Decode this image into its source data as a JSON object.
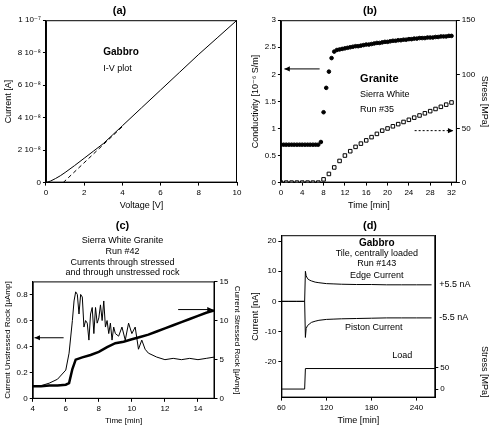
{
  "chart_data": [
    {
      "type": "line",
      "title": "(a)",
      "annotations": [
        "Gabbro",
        "I-V plot"
      ],
      "x_label": "Voltage [V]",
      "y_label": "Current [A]",
      "xlim": [
        0,
        10
      ],
      "xticks": [
        0,
        2,
        4,
        6,
        8,
        10
      ],
      "ylim": [
        0,
        1e-07
      ],
      "yticks": [
        0,
        {
          "value": 2e-08,
          "label": "2 10⁻⁸"
        },
        {
          "value": 4e-08,
          "label": "4 10⁻⁸"
        },
        {
          "value": 6e-08,
          "label": "6 10⁻⁸"
        },
        {
          "value": 8e-08,
          "label": "8 10⁻⁸"
        },
        {
          "value": 1e-07,
          "label": "1 10⁻⁷"
        }
      ],
      "grid": false,
      "series": [
        {
          "color": "#000000",
          "line_style": "solid",
          "x": [
            0,
            0.25,
            0.5,
            0.75,
            1,
            1.5,
            2,
            2.5,
            3,
            3.5,
            4,
            5,
            6,
            7,
            8,
            9,
            10
          ],
          "values": [
            0,
            1e-09,
            2.5e-09,
            4.2e-09,
            6.2e-09,
            1.05e-08,
            1.5e-08,
            1.95e-08,
            2.4e-08,
            2.95e-08,
            3.5e-08,
            4.6e-08,
            5.7e-08,
            6.8e-08,
            7.9e-08,
            8.95e-08,
            1e-07
          ]
        },
        {
          "color": "#000000",
          "line_style": "dashed",
          "x": [
            0.9,
            4
          ],
          "values": [
            0,
            3.45e-08
          ]
        }
      ]
    },
    {
      "type": "scatter",
      "title": "(b)",
      "annotations": [
        "Granite",
        "Sierra White",
        "Run #35"
      ],
      "x_label": "Time [min]",
      "y_label": "Conductivity [10⁻⁶ S/m]",
      "y2_label": "Stress [MPa]",
      "xlim": [
        0,
        33
      ],
      "xticks": [
        0,
        4,
        8,
        12,
        16,
        20,
        24,
        28,
        32
      ],
      "ylim": [
        0,
        3
      ],
      "yticks": [
        0,
        0.5,
        1,
        1.5,
        2,
        2.5,
        3
      ],
      "y2lim": [
        0,
        150
      ],
      "y2ticks": [
        0,
        50,
        100,
        150
      ],
      "grid": false,
      "series": [
        {
          "color": "#000000",
          "marker": "circle",
          "x": [
            0,
            0.5,
            1,
            1.5,
            2,
            2.5,
            3,
            3.5,
            4,
            4.5,
            5,
            5.5,
            6,
            6.5,
            7,
            7.5,
            8,
            8.5,
            9,
            9.5,
            10,
            10.5,
            11,
            11.5,
            12,
            12.5,
            13,
            13.5,
            14,
            14.5,
            15,
            15.5,
            16,
            16.5,
            17,
            17.5,
            18,
            18.5,
            19,
            19.5,
            20,
            20.5,
            21,
            21.5,
            22,
            22.5,
            23,
            23.5,
            24,
            24.5,
            25,
            25.5,
            26,
            26.5,
            27,
            27.5,
            28,
            28.5,
            29,
            29.5,
            30,
            30.5,
            31,
            31.5,
            32
          ],
          "values": [
            0.7,
            0.7,
            0.7,
            0.7,
            0.7,
            0.7,
            0.7,
            0.7,
            0.7,
            0.7,
            0.7,
            0.7,
            0.7,
            0.7,
            0.7,
            0.75,
            1.3,
            1.75,
            2.05,
            2.3,
            2.42,
            2.45,
            2.46,
            2.47,
            2.48,
            2.49,
            2.5,
            2.51,
            2.52,
            2.52,
            2.53,
            2.54,
            2.55,
            2.55,
            2.56,
            2.57,
            2.58,
            2.58,
            2.59,
            2.6,
            2.6,
            2.61,
            2.62,
            2.62,
            2.63,
            2.63,
            2.64,
            2.64,
            2.65,
            2.65,
            2.66,
            2.66,
            2.67,
            2.67,
            2.67,
            2.68,
            2.68,
            2.68,
            2.69,
            2.69,
            2.7,
            2.7,
            2.7,
            2.71,
            2.71
          ]
        },
        {
          "color": "#000000",
          "marker": "open_square",
          "axis": "y2",
          "x": [
            0,
            1,
            2,
            3,
            4,
            5,
            6,
            7,
            8,
            9,
            10,
            11,
            12,
            13,
            14,
            15,
            16,
            17,
            18,
            19,
            20,
            21,
            22,
            23,
            24,
            25,
            26,
            27,
            28,
            29,
            30,
            31,
            32
          ],
          "values": [
            0,
            0,
            0,
            0,
            0,
            0,
            0,
            0,
            3,
            8,
            14,
            20,
            25,
            29,
            33,
            36,
            39,
            42,
            45,
            48,
            50,
            52,
            54,
            56,
            58,
            60,
            62,
            64,
            66,
            68,
            70,
            72,
            74
          ]
        }
      ]
    },
    {
      "type": "line",
      "title": "(c)",
      "subtitle": [
        "Sierra White Granite",
        "Run #42",
        "Currents through stressed",
        "and through unstressed rock"
      ],
      "x_label": "Time [min]",
      "y_label": "Current Unstressed Rock [μAmp]",
      "y2_label": "Current Stressed Rock [μAmp]",
      "xlim": [
        4,
        15
      ],
      "xticks": [
        4,
        6,
        8,
        10,
        12,
        14
      ],
      "ylim": [
        0,
        0.9
      ],
      "yticks": [
        0,
        0.2,
        0.4,
        0.6,
        0.8
      ],
      "y2lim": [
        0,
        15
      ],
      "y2ticks": [
        0,
        5,
        10,
        15
      ],
      "grid": false,
      "series": [
        {
          "color": "#000000",
          "line_style": "solid",
          "x": [
            4,
            4.5,
            5,
            5.5,
            6,
            6.2,
            6.4,
            6.5,
            6.6,
            6.7,
            6.8,
            6.9,
            7.0,
            7.1,
            7.2,
            7.3,
            7.4,
            7.5,
            7.6,
            7.7,
            7.8,
            7.9,
            8.0,
            8.1,
            8.2,
            8.3,
            8.4,
            8.5,
            8.6,
            8.7,
            8.8,
            8.9,
            9.0,
            9.2,
            9.4,
            9.6,
            9.8,
            10.0,
            10.2,
            10.4,
            10.6,
            10.8,
            11.0,
            11.5,
            12,
            12.5,
            13,
            13.5,
            14,
            14.5,
            15
          ],
          "values": [
            0.1,
            0.1,
            0.12,
            0.15,
            0.22,
            0.35,
            0.6,
            0.75,
            0.82,
            0.8,
            0.65,
            0.8,
            0.78,
            0.55,
            0.6,
            0.58,
            0.45,
            0.65,
            0.7,
            0.5,
            0.7,
            0.58,
            0.62,
            0.72,
            0.6,
            0.75,
            0.55,
            0.6,
            0.5,
            0.58,
            0.45,
            0.55,
            0.5,
            0.48,
            0.55,
            0.45,
            0.58,
            0.5,
            0.55,
            0.38,
            0.45,
            0.38,
            0.35,
            0.32,
            0.3,
            0.31,
            0.3,
            0.31,
            0.3,
            0.31,
            0.32
          ]
        },
        {
          "color": "#000000",
          "line_style": "bold",
          "axis": "y2",
          "x": [
            4,
            4.5,
            5,
            5.5,
            6,
            6.2,
            6.4,
            6.6,
            7,
            7.5,
            8,
            8.5,
            9,
            9.5,
            10,
            10.5,
            11,
            11.5,
            12,
            12.5,
            13,
            13.5,
            14,
            14.5,
            15
          ],
          "values": [
            1.6,
            1.6,
            1.7,
            1.7,
            1.8,
            2.0,
            3.8,
            5.0,
            5.3,
            5.6,
            6.0,
            6.6,
            7.1,
            7.3,
            7.6,
            7.9,
            8.2,
            8.6,
            9.0,
            9.4,
            9.8,
            10.2,
            10.6,
            11.0,
            11.3
          ]
        }
      ]
    },
    {
      "type": "line",
      "title": "(d)",
      "annotations": [
        "Gabbro",
        "Tile, centrally loaded",
        "Run #143",
        "Edge Current",
        "Piston Current",
        "Load",
        "+5.5 nA",
        "-5.5 nA"
      ],
      "x_label": "Time [min]",
      "y_label": "Current [nA]",
      "y2_label": "Stress [MPa]",
      "xlim": [
        60,
        265
      ],
      "xticks": [
        60,
        120,
        180,
        240
      ],
      "ylim": [
        -32,
        22
      ],
      "yticks": [
        -20,
        -10,
        0,
        10,
        20
      ],
      "y2lim": [
        -20,
        360
      ],
      "y2ticks": [
        0,
        50
      ],
      "grid": false,
      "series": [
        {
          "color": "#000000",
          "line_style": "solid",
          "x": [
            60,
            70,
            80,
            90,
            91,
            92,
            93,
            95,
            98,
            100,
            105,
            110,
            120,
            130,
            140,
            160,
            180,
            200,
            220,
            240,
            260
          ],
          "values": [
            0,
            0,
            0,
            0,
            0,
            10,
            8.5,
            7.5,
            7,
            6.8,
            6.4,
            6.2,
            5.9,
            5.8,
            5.7,
            5.6,
            5.6,
            5.5,
            5.5,
            5.5,
            5.5
          ]
        },
        {
          "color": "#000000",
          "line_style": "solid",
          "x": [
            60,
            70,
            80,
            90,
            91,
            92,
            93,
            95,
            98,
            100,
            105,
            110,
            120,
            130,
            140,
            160,
            180,
            200,
            220,
            240,
            260
          ],
          "values": [
            0,
            0,
            0,
            0,
            0,
            -12,
            -9,
            -8,
            -7.4,
            -7,
            -6.6,
            -6.3,
            -6,
            -5.9,
            -5.8,
            -5.7,
            -5.6,
            -5.5,
            -5.5,
            -5.5,
            -5.5
          ]
        },
        {
          "color": "#000000",
          "line_style": "solid",
          "axis": "y2",
          "x": [
            60,
            91,
            92,
            265
          ],
          "values": [
            0,
            0,
            48,
            48
          ]
        }
      ]
    }
  ]
}
